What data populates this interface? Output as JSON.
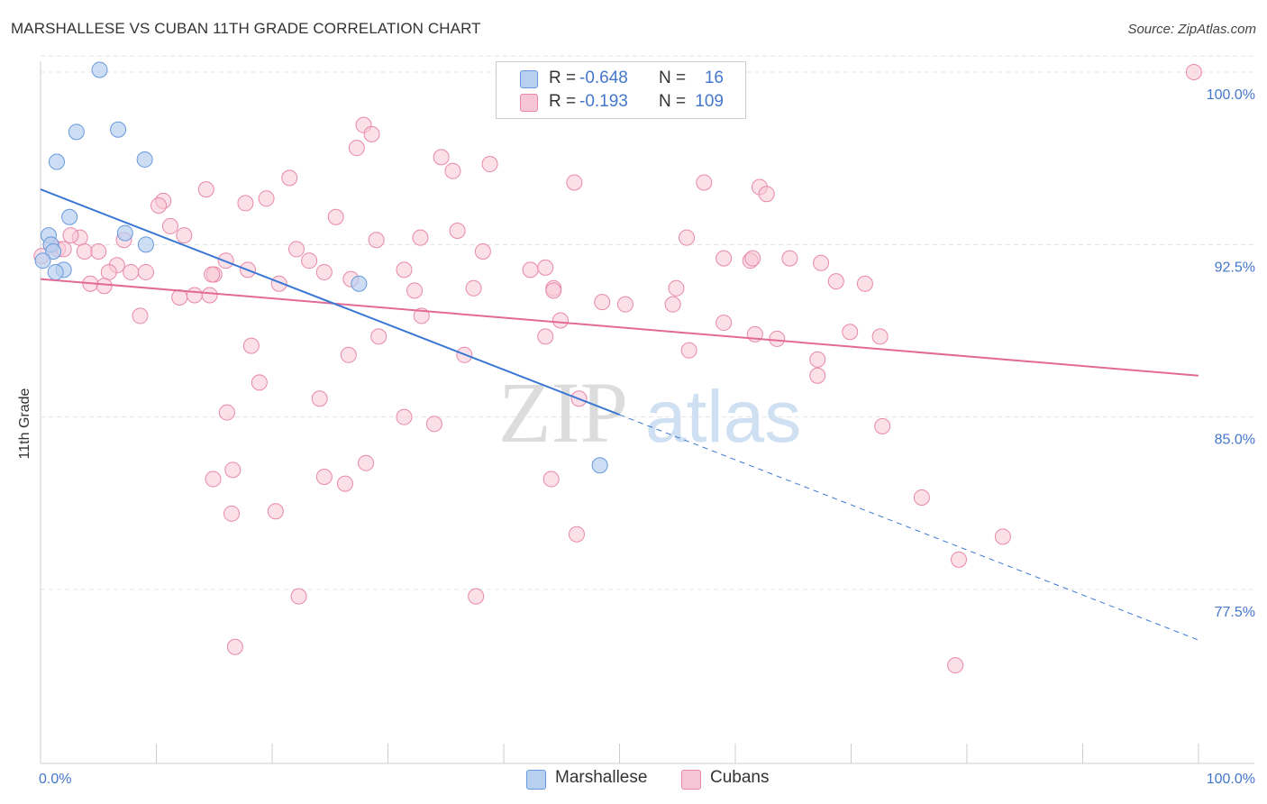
{
  "title": "MARSHALLESE VS CUBAN 11TH GRADE CORRELATION CHART",
  "source": "Source: ZipAtlas.com",
  "watermark": {
    "zip": "ZIP",
    "atlas": "atlas"
  },
  "colors": {
    "marshallese_fill": "#b8d0f0",
    "marshallese_stroke": "#6699dd",
    "marshallese_line": "#3a78d4",
    "cubans_fill": "#f7c6d6",
    "cubans_stroke": "#e888a8",
    "cubans_line": "#e26a96",
    "tick_label": "#4477cc",
    "grid": "#e4e4e4"
  },
  "legend_top": {
    "rows": [
      {
        "r_label": "R =",
        "r_value": "-0.648",
        "n_label": "N =",
        "n_value": "16"
      },
      {
        "r_label": "R =",
        "r_value": "-0.193",
        "n_label": "N =",
        "n_value": "109"
      }
    ]
  },
  "legend_bottom": [
    {
      "label": "Marshallese"
    },
    {
      "label": "Cubans"
    }
  ],
  "chart_data": {
    "type": "scatter",
    "title": "MARSHALLESE VS CUBAN 11TH GRADE CORRELATION CHART",
    "xlabel": "",
    "ylabel": "11th Grade",
    "xlim": [
      0,
      100
    ],
    "ylim": [
      70.5,
      101.2
    ],
    "x_tick_labels": [
      "0.0%",
      "100.0%"
    ],
    "y_ticks": [
      77.5,
      85.0,
      92.5,
      100.0
    ],
    "y_tick_labels": [
      "77.5%",
      "85.0%",
      "92.5%",
      "100.0%"
    ],
    "grid": true,
    "legend_position": "top-center",
    "series": [
      {
        "name": "Marshallese",
        "r": -0.648,
        "n": 16,
        "trend": {
          "x0": 0,
          "y0": 94.9,
          "x1": 100,
          "y1": 75.3,
          "solid_until_x": 50
        },
        "points": [
          [
            5.1,
            100.1
          ],
          [
            3.1,
            97.4
          ],
          [
            6.7,
            97.5
          ],
          [
            1.4,
            96.1
          ],
          [
            9.0,
            96.2
          ],
          [
            2.5,
            93.7
          ],
          [
            0.7,
            92.9
          ],
          [
            7.3,
            93.0
          ],
          [
            0.9,
            92.5
          ],
          [
            9.1,
            92.5
          ],
          [
            1.1,
            92.2
          ],
          [
            0.2,
            91.8
          ],
          [
            2.0,
            91.4
          ],
          [
            1.3,
            91.3
          ],
          [
            27.5,
            90.8
          ],
          [
            48.3,
            82.9
          ]
        ]
      },
      {
        "name": "Cubans",
        "r": -0.193,
        "n": 109,
        "trend": {
          "x0": 0,
          "y0": 91.0,
          "x1": 100,
          "y1": 86.8
        },
        "points": [
          [
            99.6,
            100.0
          ],
          [
            27.9,
            97.7
          ],
          [
            28.6,
            97.3
          ],
          [
            27.3,
            96.7
          ],
          [
            34.6,
            96.3
          ],
          [
            38.8,
            96.0
          ],
          [
            35.6,
            95.7
          ],
          [
            21.5,
            95.4
          ],
          [
            46.1,
            95.2
          ],
          [
            57.3,
            95.2
          ],
          [
            62.1,
            95.0
          ],
          [
            62.7,
            94.7
          ],
          [
            14.3,
            94.9
          ],
          [
            10.6,
            94.4
          ],
          [
            19.5,
            94.5
          ],
          [
            17.7,
            94.3
          ],
          [
            10.2,
            94.2
          ],
          [
            25.5,
            93.7
          ],
          [
            11.2,
            93.3
          ],
          [
            0.9,
            92.5
          ],
          [
            1.5,
            92.3
          ],
          [
            36.0,
            93.1
          ],
          [
            12.4,
            92.9
          ],
          [
            7.2,
            92.7
          ],
          [
            29.0,
            92.7
          ],
          [
            32.8,
            92.8
          ],
          [
            55.8,
            92.8
          ],
          [
            3.4,
            92.8
          ],
          [
            2.6,
            92.9
          ],
          [
            3.8,
            92.2
          ],
          [
            5.0,
            92.2
          ],
          [
            38.2,
            92.2
          ],
          [
            22.1,
            92.3
          ],
          [
            0.1,
            92.0
          ],
          [
            2.0,
            92.3
          ],
          [
            23.2,
            91.8
          ],
          [
            59.0,
            91.9
          ],
          [
            61.3,
            91.8
          ],
          [
            16.0,
            91.8
          ],
          [
            7.8,
            91.3
          ],
          [
            9.1,
            91.3
          ],
          [
            6.6,
            91.6
          ],
          [
            5.9,
            91.3
          ],
          [
            24.5,
            91.3
          ],
          [
            15.0,
            91.2
          ],
          [
            14.8,
            91.2
          ],
          [
            31.4,
            91.4
          ],
          [
            26.8,
            91.0
          ],
          [
            20.6,
            90.8
          ],
          [
            17.9,
            91.4
          ],
          [
            42.3,
            91.4
          ],
          [
            43.6,
            91.5
          ],
          [
            44.3,
            90.6
          ],
          [
            32.3,
            90.5
          ],
          [
            37.4,
            90.6
          ],
          [
            48.5,
            90.0
          ],
          [
            54.9,
            90.6
          ],
          [
            67.4,
            91.7
          ],
          [
            64.7,
            91.9
          ],
          [
            61.5,
            91.9
          ],
          [
            68.7,
            90.9
          ],
          [
            71.2,
            90.8
          ],
          [
            54.6,
            89.9
          ],
          [
            44.3,
            90.5
          ],
          [
            12.0,
            90.2
          ],
          [
            13.3,
            90.3
          ],
          [
            14.6,
            90.3
          ],
          [
            4.3,
            90.8
          ],
          [
            5.5,
            90.7
          ],
          [
            50.5,
            89.9
          ],
          [
            8.6,
            89.4
          ],
          [
            32.9,
            89.4
          ],
          [
            44.9,
            89.2
          ],
          [
            59.0,
            89.1
          ],
          [
            61.7,
            88.6
          ],
          [
            63.6,
            88.4
          ],
          [
            69.9,
            88.7
          ],
          [
            18.2,
            88.1
          ],
          [
            29.2,
            88.5
          ],
          [
            43.6,
            88.5
          ],
          [
            26.6,
            87.7
          ],
          [
            36.6,
            87.7
          ],
          [
            67.1,
            86.8
          ],
          [
            72.5,
            88.5
          ],
          [
            56.0,
            87.9
          ],
          [
            67.1,
            87.5
          ],
          [
            18.9,
            86.5
          ],
          [
            24.1,
            85.8
          ],
          [
            46.5,
            85.8
          ],
          [
            16.1,
            85.2
          ],
          [
            31.4,
            85.0
          ],
          [
            34.0,
            84.7
          ],
          [
            72.7,
            84.6
          ],
          [
            28.1,
            83.0
          ],
          [
            16.6,
            82.7
          ],
          [
            14.9,
            82.3
          ],
          [
            24.5,
            82.4
          ],
          [
            26.3,
            82.1
          ],
          [
            44.1,
            82.3
          ],
          [
            20.3,
            80.9
          ],
          [
            16.5,
            80.8
          ],
          [
            76.1,
            81.5
          ],
          [
            46.3,
            79.9
          ],
          [
            83.1,
            79.8
          ],
          [
            79.3,
            78.8
          ],
          [
            22.3,
            77.2
          ],
          [
            37.6,
            77.2
          ],
          [
            16.8,
            75.0
          ],
          [
            79.0,
            74.2
          ]
        ]
      }
    ]
  }
}
